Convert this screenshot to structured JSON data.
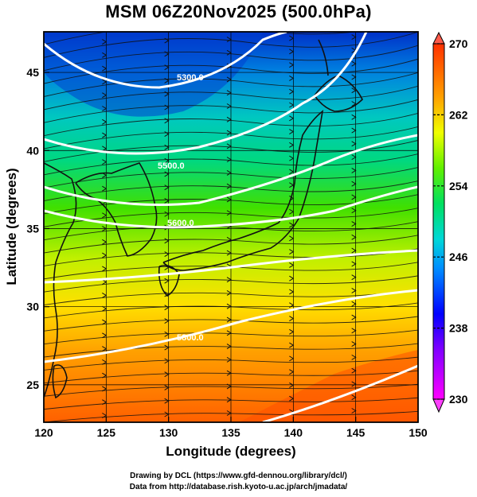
{
  "title": "MSM 06Z20Nov2025 (500.0hPa)",
  "credits": {
    "line1": "Drawing by DCL (https://www.gfd-dennou.org/library/dcl/)",
    "line2": "Data from http://database.rish.kyoto-u.ac.jp/arch/jmadata/"
  },
  "map": {
    "xlabel": "Longitude (degrees)",
    "ylabel": "Latitude  (degrees)",
    "xlim": [
      120,
      150
    ],
    "ylim": [
      22.6,
      47.6
    ],
    "xticks": [
      "120",
      "125",
      "130",
      "135",
      "140",
      "145",
      "150"
    ],
    "yticks": [
      "25",
      "30",
      "35",
      "40",
      "45"
    ],
    "contour_labels": [
      "5300.0",
      "5500.0",
      "5600.0",
      "5800.0"
    ]
  },
  "colorbar": {
    "min": 230,
    "max": 270,
    "tick_labels": [
      "270",
      "262",
      "254",
      "246",
      "238",
      "230"
    ],
    "colors": [
      "#ff00ff",
      "#0000ff",
      "#00bfff",
      "#00e5c0",
      "#00e000",
      "#c8ff00",
      "#ffa500",
      "#ff4000"
    ]
  }
}
